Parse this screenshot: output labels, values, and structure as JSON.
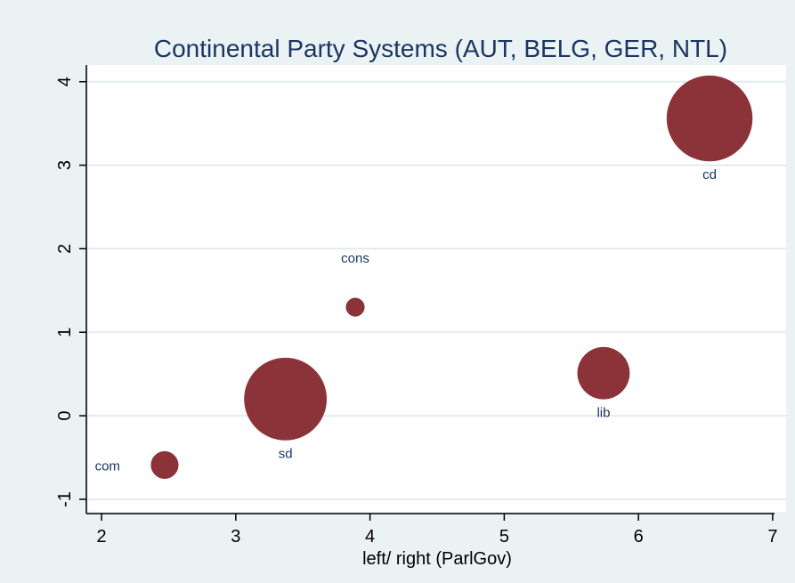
{
  "chart_data": {
    "type": "scatter",
    "title": "Continental Party Systems (AUT, BELG, GER, NTL)",
    "xlabel": "left/ right (ParlGov)",
    "ylabel": "",
    "xlim": [
      1.9,
      7.1
    ],
    "ylim": [
      -1.15,
      4.2
    ],
    "xticks": [
      2,
      3,
      4,
      5,
      6,
      7
    ],
    "xtick_labels": [
      "2",
      "3",
      "4",
      "5",
      "6",
      "7"
    ],
    "yticks": [
      -1,
      0,
      1,
      2,
      3,
      4
    ],
    "ytick_labels": [
      "-1",
      "0",
      "1",
      "2",
      "3",
      "4"
    ],
    "grid": "horizontal",
    "points": [
      {
        "label": "com",
        "x": 2.47,
        "y": -0.59,
        "weight": 0.11,
        "label_position": "left"
      },
      {
        "label": "sd",
        "x": 3.37,
        "y": 0.2,
        "weight": 1.0,
        "label_position": "below"
      },
      {
        "label": "cons",
        "x": 3.89,
        "y": 1.3,
        "weight": 0.05,
        "label_position": "above"
      },
      {
        "label": "lib",
        "x": 5.74,
        "y": 0.51,
        "weight": 0.4,
        "label_position": "below"
      },
      {
        "label": "cd",
        "x": 6.53,
        "y": 3.56,
        "weight": 1.08,
        "label_position": "below"
      }
    ],
    "colors": {
      "outer_background": "#eaf2f3",
      "plot_background": "#ffffff",
      "marker_fill": "#8c3339",
      "marker_edge": "#1f3f6b",
      "title": "#1c3563",
      "point_label": "#1c3563",
      "grid": "#e2ebee",
      "axis": "#000000"
    }
  }
}
